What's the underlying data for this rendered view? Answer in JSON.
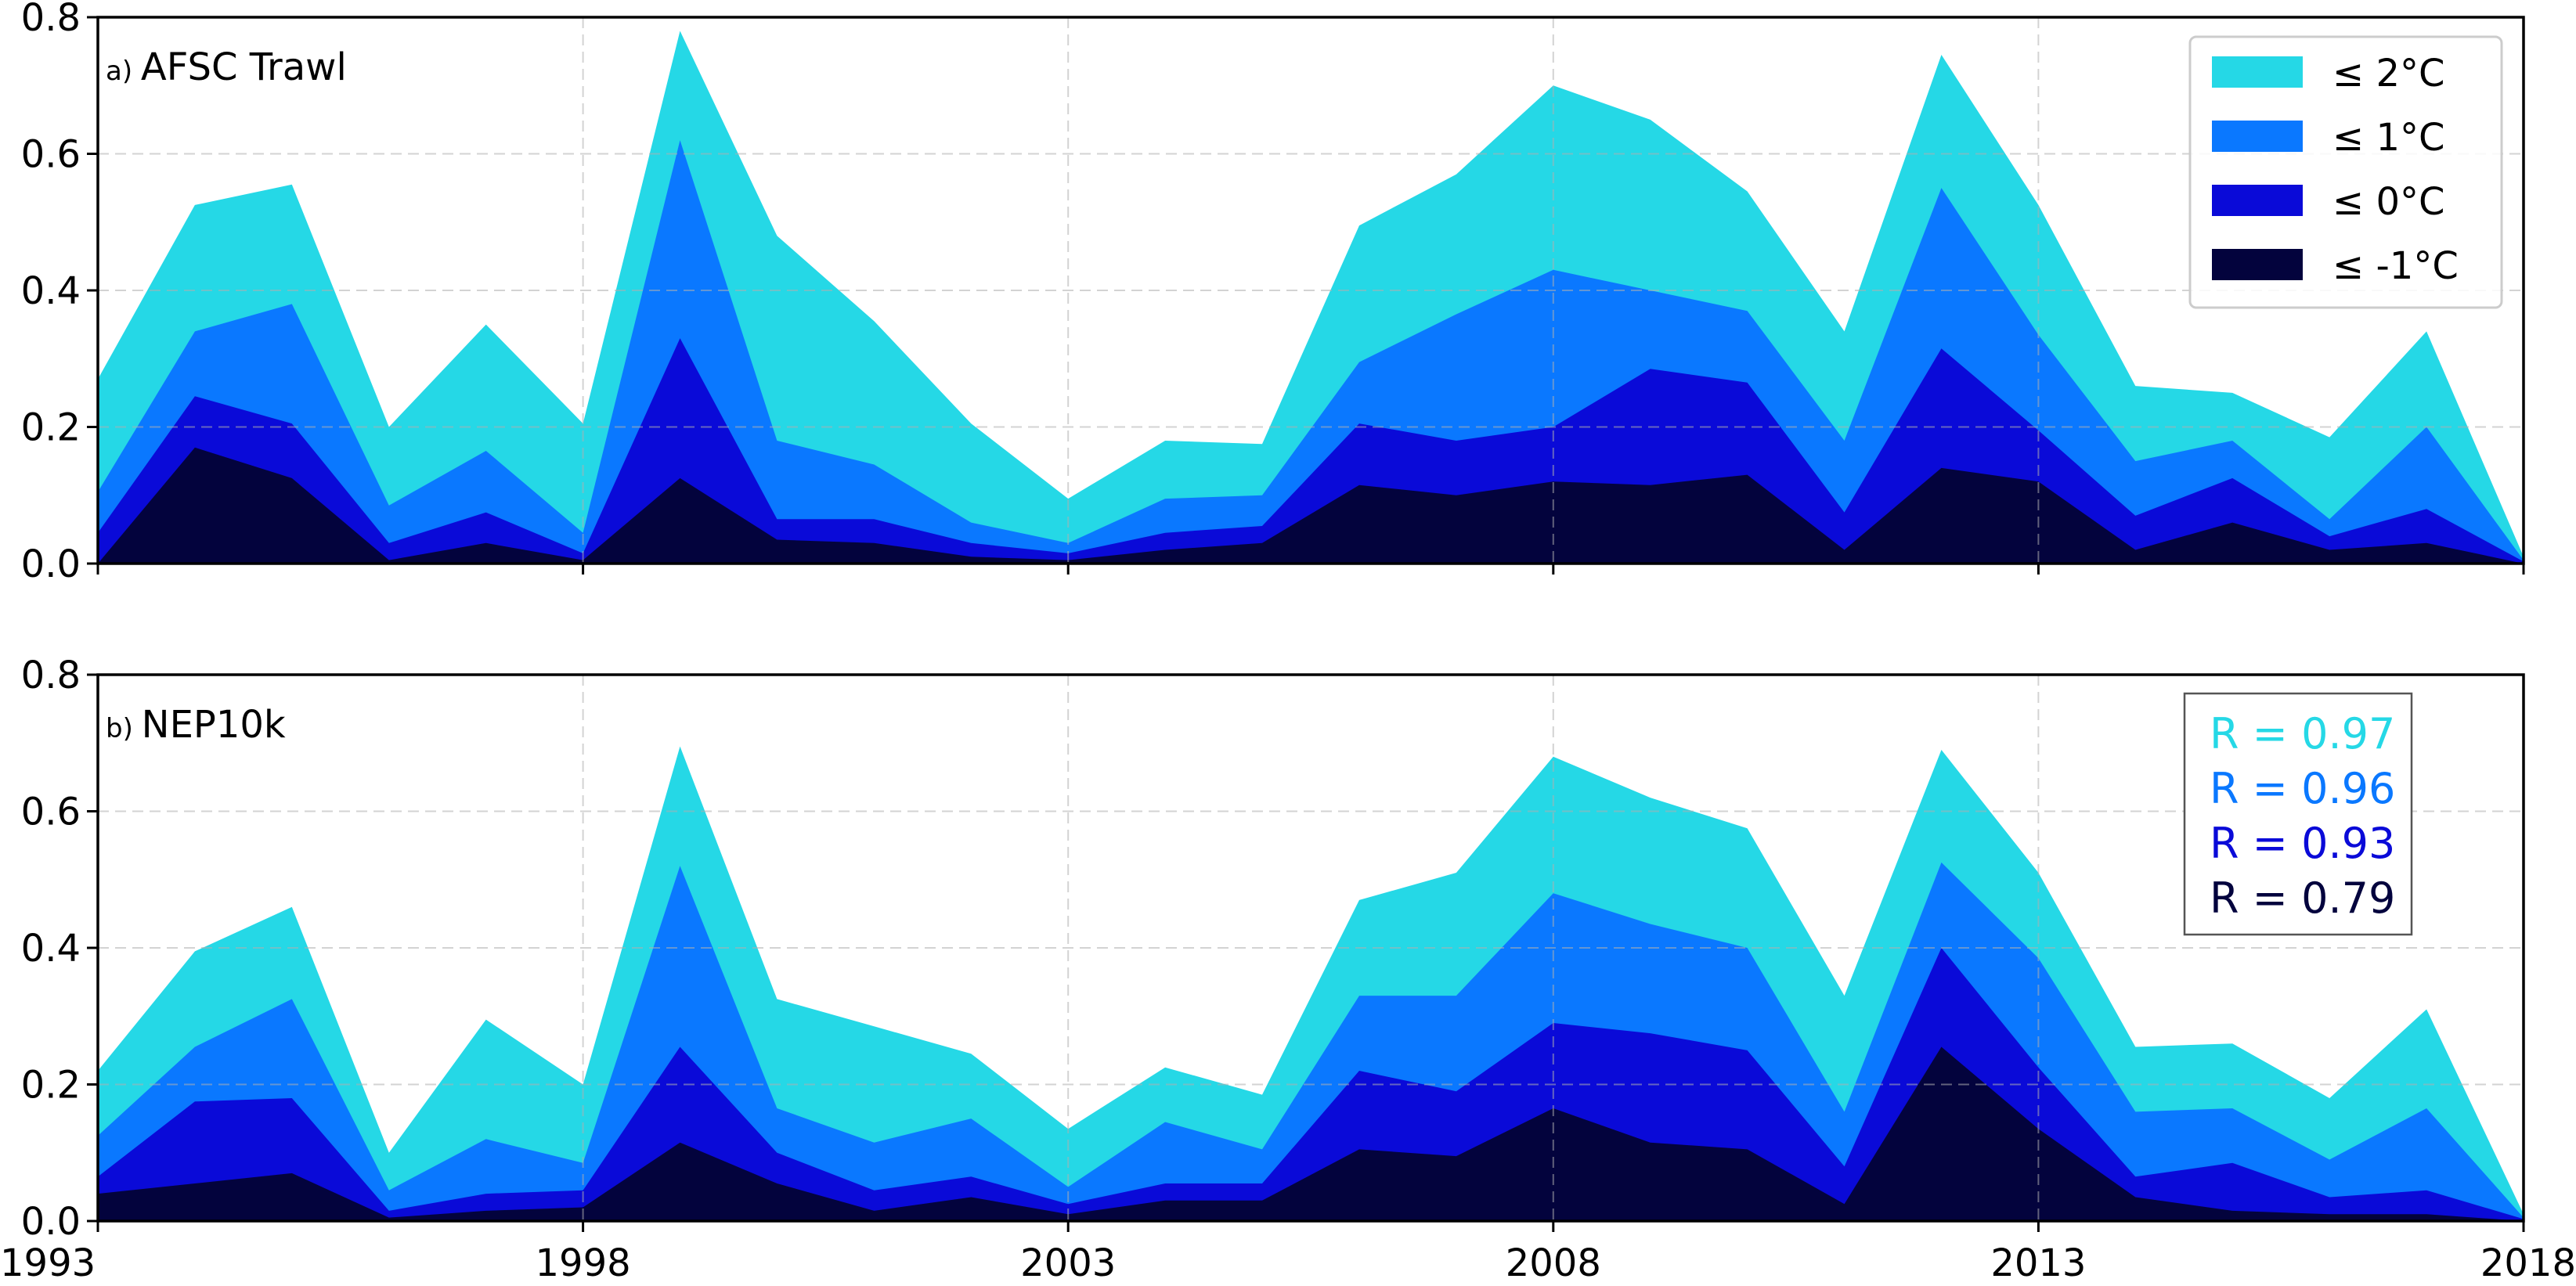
{
  "chart_data": [
    {
      "type": "area",
      "panel_label": "a)",
      "title": "AFSC Trawl",
      "x": [
        1993,
        1994,
        1995,
        1996,
        1997,
        1998,
        1999,
        2000,
        2001,
        2002,
        2003,
        2004,
        2005,
        2006,
        2007,
        2008,
        2009,
        2010,
        2011,
        2012,
        2013,
        2014,
        2015,
        2016,
        2017,
        2018
      ],
      "xlim": [
        1993,
        2018
      ],
      "ylim": [
        0,
        0.8
      ],
      "yticks": [
        "0.0",
        "0.2",
        "0.4",
        "0.6",
        "0.8"
      ],
      "grid": "dashed",
      "series": [
        {
          "name": "≤ 2°C",
          "color": "#25d8e6",
          "values": [
            0.27,
            0.525,
            0.555,
            0.2,
            0.35,
            0.205,
            0.78,
            0.48,
            0.355,
            0.205,
            0.095,
            0.18,
            0.175,
            0.495,
            0.57,
            0.7,
            0.65,
            0.545,
            0.34,
            0.745,
            0.525,
            0.26,
            0.25,
            0.185,
            0.34,
            0.01
          ]
        },
        {
          "name": "≤ 1°C",
          "color": "#0a78ff",
          "values": [
            0.105,
            0.34,
            0.38,
            0.085,
            0.165,
            0.045,
            0.62,
            0.18,
            0.145,
            0.06,
            0.03,
            0.095,
            0.1,
            0.295,
            0.365,
            0.43,
            0.4,
            0.37,
            0.18,
            0.55,
            0.335,
            0.15,
            0.18,
            0.065,
            0.2,
            0.005
          ]
        },
        {
          "name": "≤ 0°C",
          "color": "#0a0ad8",
          "values": [
            0.045,
            0.245,
            0.205,
            0.03,
            0.075,
            0.015,
            0.33,
            0.065,
            0.065,
            0.03,
            0.015,
            0.045,
            0.055,
            0.205,
            0.18,
            0.2,
            0.285,
            0.265,
            0.075,
            0.315,
            0.195,
            0.07,
            0.125,
            0.04,
            0.08,
            0.003
          ]
        },
        {
          "name": "≤ -1°C",
          "color": "#03033d",
          "values": [
            0.0,
            0.17,
            0.125,
            0.005,
            0.03,
            0.005,
            0.125,
            0.035,
            0.03,
            0.01,
            0.005,
            0.02,
            0.03,
            0.115,
            0.1,
            0.12,
            0.115,
            0.13,
            0.02,
            0.14,
            0.12,
            0.02,
            0.06,
            0.02,
            0.03,
            0.0
          ]
        }
      ],
      "legend": {
        "position": "top-right",
        "entries": [
          "≤ 2°C",
          "≤ 1°C",
          "≤ 0°C",
          "≤ -1°C"
        ]
      }
    },
    {
      "type": "area",
      "panel_label": "b)",
      "title": "NEP10k",
      "x": [
        1993,
        1994,
        1995,
        1996,
        1997,
        1998,
        1999,
        2000,
        2001,
        2002,
        2003,
        2004,
        2005,
        2006,
        2007,
        2008,
        2009,
        2010,
        2011,
        2012,
        2013,
        2014,
        2015,
        2016,
        2017,
        2018
      ],
      "xlim": [
        1993,
        2018
      ],
      "ylim": [
        0,
        0.8
      ],
      "yticks": [
        "0.0",
        "0.2",
        "0.4",
        "0.6",
        "0.8"
      ],
      "xticks": [
        "1993",
        "1998",
        "2003",
        "2008",
        "2013",
        "2018"
      ],
      "grid": "dashed",
      "series": [
        {
          "name": "≤ 2°C",
          "color": "#25d8e6",
          "values": [
            0.22,
            0.395,
            0.46,
            0.1,
            0.295,
            0.2,
            0.695,
            0.325,
            0.285,
            0.245,
            0.135,
            0.225,
            0.185,
            0.47,
            0.51,
            0.68,
            0.62,
            0.575,
            0.33,
            0.69,
            0.51,
            0.255,
            0.26,
            0.18,
            0.31,
            0.01
          ]
        },
        {
          "name": "≤ 1°C",
          "color": "#0a78ff",
          "values": [
            0.125,
            0.255,
            0.325,
            0.045,
            0.12,
            0.085,
            0.52,
            0.165,
            0.115,
            0.15,
            0.05,
            0.145,
            0.105,
            0.33,
            0.33,
            0.48,
            0.435,
            0.4,
            0.16,
            0.525,
            0.385,
            0.16,
            0.165,
            0.09,
            0.165,
            0.005
          ]
        },
        {
          "name": "≤ 0°C",
          "color": "#0a0ad8",
          "values": [
            0.065,
            0.175,
            0.18,
            0.015,
            0.04,
            0.045,
            0.255,
            0.1,
            0.045,
            0.065,
            0.025,
            0.055,
            0.055,
            0.22,
            0.19,
            0.29,
            0.275,
            0.25,
            0.08,
            0.4,
            0.225,
            0.065,
            0.085,
            0.035,
            0.045,
            0.003
          ]
        },
        {
          "name": "≤ -1°C",
          "color": "#03033d",
          "values": [
            0.04,
            0.055,
            0.07,
            0.005,
            0.015,
            0.02,
            0.115,
            0.055,
            0.015,
            0.035,
            0.01,
            0.03,
            0.03,
            0.105,
            0.095,
            0.165,
            0.115,
            0.105,
            0.025,
            0.255,
            0.135,
            0.035,
            0.015,
            0.01,
            0.01,
            0.0
          ]
        }
      ],
      "correlations": [
        {
          "text": "R = 0.97",
          "color": "#25d8e6"
        },
        {
          "text": "R = 0.96",
          "color": "#0a78ff"
        },
        {
          "text": "R = 0.93",
          "color": "#0a0ad8"
        },
        {
          "text": "R = 0.79",
          "color": "#03033d"
        }
      ]
    }
  ]
}
